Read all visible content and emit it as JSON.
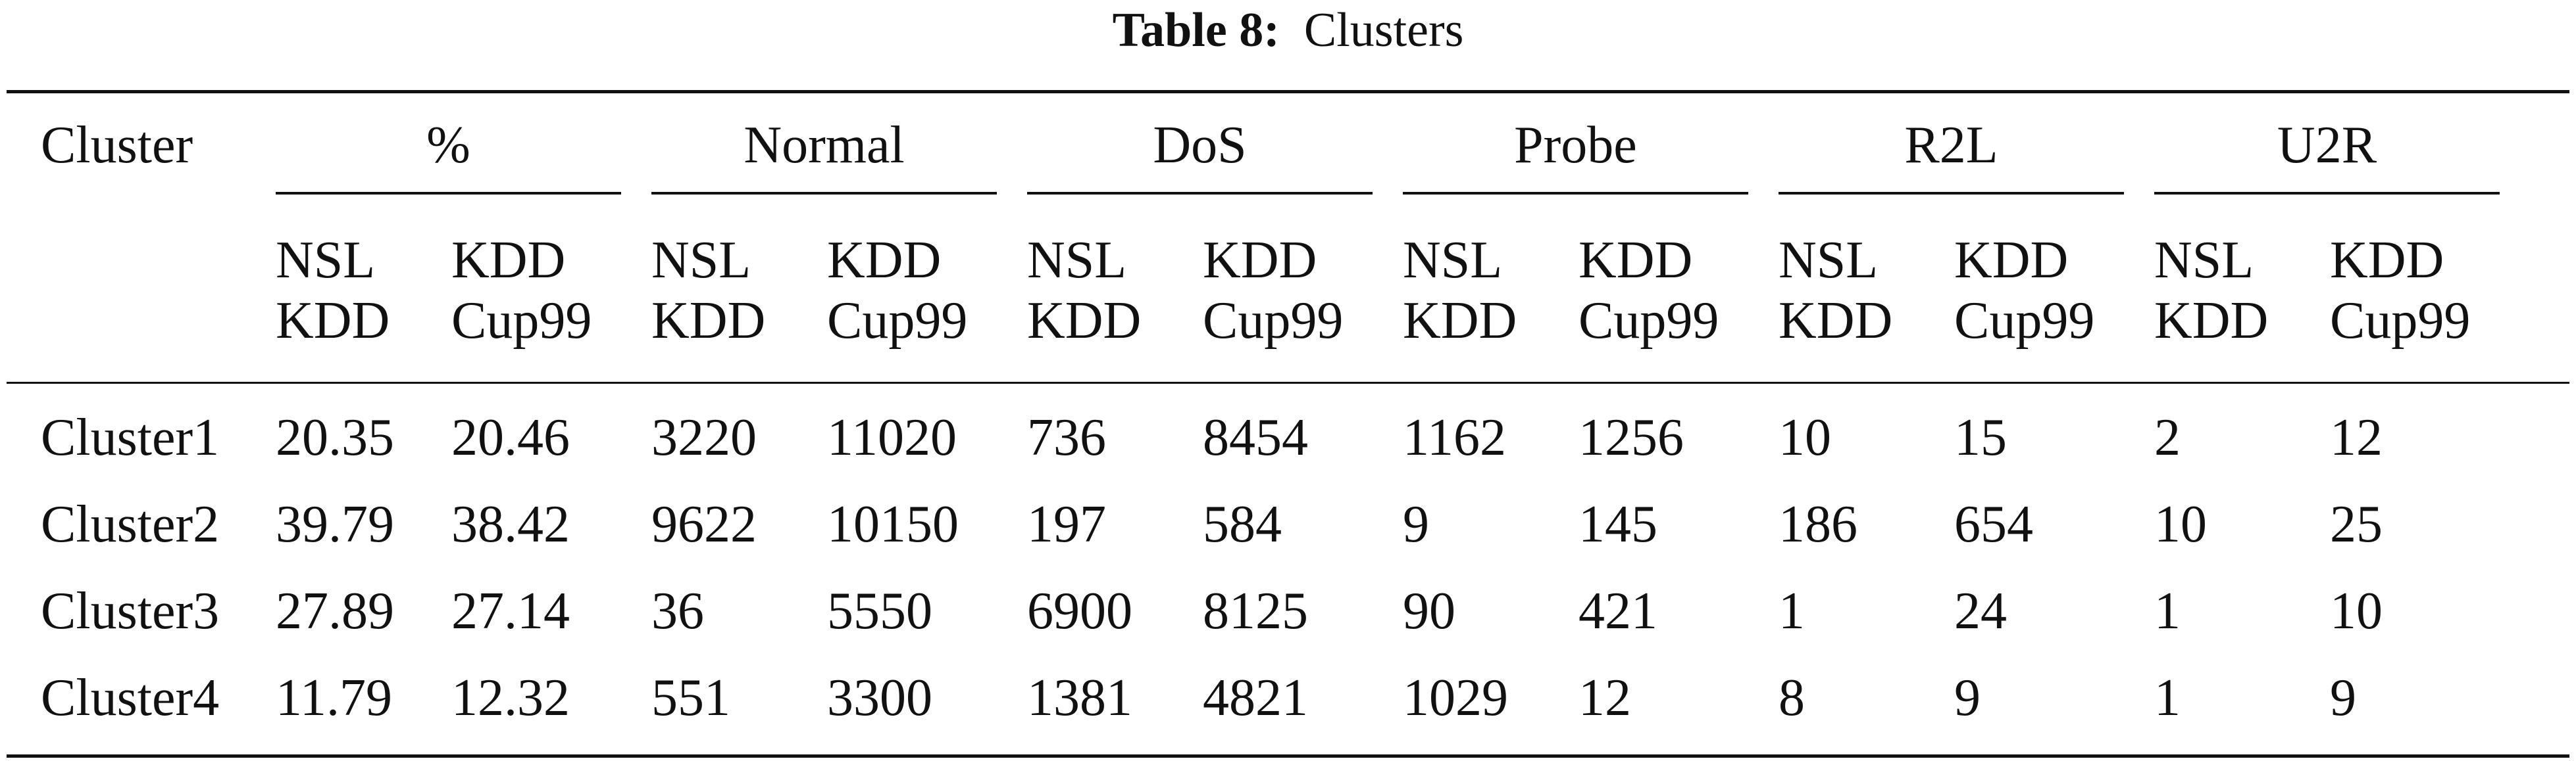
{
  "caption": {
    "label": "Table 8:",
    "title": "Clusters"
  },
  "table": {
    "stub_header": "Cluster",
    "groups": [
      "%",
      "Normal",
      "DoS",
      "Probe",
      "R2L",
      "U2R"
    ],
    "subcolumns": [
      {
        "line1": "NSL",
        "line2": "KDD"
      },
      {
        "line1": "KDD",
        "line2": "Cup99"
      }
    ],
    "rows": [
      {
        "cluster": "Cluster1",
        "values": [
          "20.35",
          "20.46",
          "3220",
          "11020",
          "736",
          "8454",
          "1162",
          "1256",
          "10",
          "15",
          "2",
          "12"
        ]
      },
      {
        "cluster": "Cluster2",
        "values": [
          "39.79",
          "38.42",
          "9622",
          "10150",
          "197",
          "584",
          "9",
          "145",
          "186",
          "654",
          "10",
          "25"
        ]
      },
      {
        "cluster": "Cluster3",
        "values": [
          "27.89",
          "27.14",
          "36",
          "5550",
          "6900",
          "8125",
          "90",
          "421",
          "1",
          "24",
          "1",
          "10"
        ]
      },
      {
        "cluster": "Cluster4",
        "values": [
          "11.79",
          "12.32",
          "551",
          "3300",
          "1381",
          "4821",
          "1029",
          "12",
          "8",
          "9",
          "1",
          "9"
        ]
      }
    ]
  }
}
